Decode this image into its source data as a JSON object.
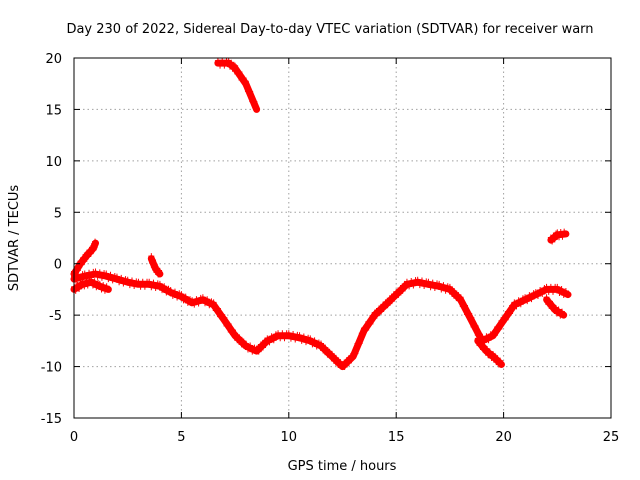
{
  "chart_data": {
    "type": "scatter",
    "title": "Day 230 of 2022, Sidereal Day-to-day VTEC variation (SDTVAR) for receiver warn",
    "xlabel": "GPS time / hours",
    "ylabel": "SDTVAR / TECUs",
    "xlim": [
      0,
      25
    ],
    "ylim": [
      -15,
      20
    ],
    "xticks": [
      "0",
      "5",
      "10",
      "15",
      "20",
      "25"
    ],
    "yticks": [
      "20",
      "15",
      "10",
      "5",
      "0",
      "-5",
      "-10",
      "-15"
    ],
    "grid": true,
    "legend": "none",
    "color": "#ff0000",
    "series": [
      {
        "name": "main-trend",
        "x": [
          0.0,
          0.5,
          1.0,
          1.5,
          2.0,
          2.5,
          3.0,
          3.5,
          4.0,
          4.5,
          5.0,
          5.5,
          6.0,
          6.5,
          7.0,
          7.5,
          8.0,
          8.5,
          9.0,
          9.5,
          10.0,
          10.5,
          11.0,
          11.5,
          12.0,
          12.5,
          13.0,
          13.5,
          14.0,
          14.5,
          15.0,
          15.5,
          16.0,
          16.5,
          17.0,
          17.5,
          18.0,
          18.5,
          19.0,
          19.5,
          20.0,
          20.5,
          21.0,
          21.5,
          22.0,
          22.5,
          23.0
        ],
        "y": [
          -1.5,
          -1.2,
          -1.0,
          -1.2,
          -1.5,
          -1.8,
          -2.0,
          -2.0,
          -2.2,
          -2.8,
          -3.2,
          -3.8,
          -3.5,
          -4.0,
          -5.5,
          -7.0,
          -8.0,
          -8.5,
          -7.5,
          -7.0,
          -7.0,
          -7.2,
          -7.5,
          -8.0,
          -9.0,
          -10.0,
          -9.0,
          -6.5,
          -5.0,
          -4.0,
          -3.0,
          -2.0,
          -1.8,
          -2.0,
          -2.2,
          -2.5,
          -3.5,
          -5.5,
          -7.5,
          -7.0,
          -5.5,
          -4.0,
          -3.5,
          -3.0,
          -2.5,
          -2.5,
          -3.0
        ]
      },
      {
        "name": "early-spike",
        "x": [
          0.0,
          0.3,
          0.6,
          0.9,
          1.0
        ],
        "y": [
          -1.0,
          0.0,
          0.8,
          1.5,
          2.0
        ]
      },
      {
        "name": "early-lower",
        "x": [
          0.0,
          0.4,
          0.8,
          1.2,
          1.6
        ],
        "y": [
          -2.5,
          -2.0,
          -1.8,
          -2.2,
          -2.5
        ]
      },
      {
        "name": "bump-3-7h",
        "x": [
          3.6,
          3.8,
          4.0
        ],
        "y": [
          0.5,
          -0.5,
          -1.0
        ]
      },
      {
        "name": "upper-segment",
        "x": [
          6.7,
          7.2,
          7.5,
          8.0,
          8.5
        ],
        "y": [
          19.5,
          19.5,
          19.0,
          17.5,
          15.0
        ]
      },
      {
        "name": "dip-19-20h",
        "x": [
          18.8,
          19.2,
          19.6,
          19.9
        ],
        "y": [
          -7.5,
          -8.5,
          -9.2,
          -9.8
        ]
      },
      {
        "name": "late-lower",
        "x": [
          22.0,
          22.4,
          22.8
        ],
        "y": [
          -3.5,
          -4.5,
          -5.0
        ]
      },
      {
        "name": "late-short",
        "x": [
          22.2,
          22.5,
          22.9
        ],
        "y": [
          2.3,
          2.8,
          2.9
        ]
      }
    ]
  }
}
